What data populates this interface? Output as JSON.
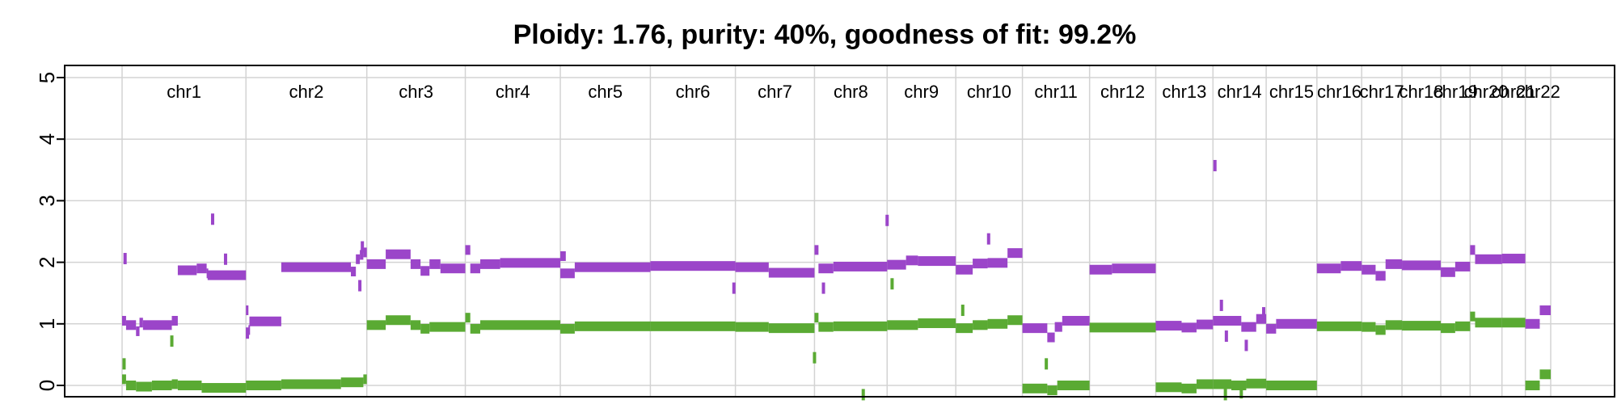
{
  "chart_data": {
    "type": "scatter",
    "title": "Ploidy: 1.76, purity: 40%, goodness of fit: 99.2%",
    "xlabel": "",
    "ylabel": "",
    "ylim": [
      -0.2,
      5.2
    ],
    "yticks": [
      "0",
      "1",
      "2",
      "3",
      "4",
      "5"
    ],
    "grid": true,
    "legend": "none",
    "colors": {
      "total": "#9b45c9",
      "minor": "#5aaa33"
    },
    "chromosomes": [
      {
        "name": "chr1",
        "start": 0,
        "end": 249
      },
      {
        "name": "chr2",
        "start": 249,
        "end": 492
      },
      {
        "name": "chr3",
        "start": 492,
        "end": 690
      },
      {
        "name": "chr4",
        "start": 690,
        "end": 881
      },
      {
        "name": "chr5",
        "start": 881,
        "end": 1062
      },
      {
        "name": "chr6",
        "start": 1062,
        "end": 1233
      },
      {
        "name": "chr7",
        "start": 1233,
        "end": 1392
      },
      {
        "name": "chr8",
        "start": 1392,
        "end": 1538
      },
      {
        "name": "chr9",
        "start": 1538,
        "end": 1676
      },
      {
        "name": "chr10",
        "start": 1676,
        "end": 1810
      },
      {
        "name": "chr11",
        "start": 1810,
        "end": 1945
      },
      {
        "name": "chr12",
        "start": 1945,
        "end": 2078
      },
      {
        "name": "chr13",
        "start": 2078,
        "end": 2193
      },
      {
        "name": "chr14",
        "start": 2193,
        "end": 2300
      },
      {
        "name": "chr15",
        "start": 2300,
        "end": 2402
      },
      {
        "name": "chr16",
        "start": 2402,
        "end": 2492
      },
      {
        "name": "chr17",
        "start": 2492,
        "end": 2573
      },
      {
        "name": "chr18",
        "start": 2573,
        "end": 2651
      },
      {
        "name": "chr19",
        "start": 2651,
        "end": 2710
      },
      {
        "name": "chr20",
        "start": 2710,
        "end": 2774
      },
      {
        "name": "chr21",
        "start": 2774,
        "end": 2821
      },
      {
        "name": "chr22",
        "start": 2821,
        "end": 2872
      }
    ],
    "series": [
      {
        "key": "total",
        "segments": [
          [
            0,
            8,
            1.05
          ],
          [
            8,
            28,
            0.98
          ],
          [
            28,
            35,
            0.88
          ],
          [
            35,
            42,
            1.02
          ],
          [
            42,
            100,
            0.98
          ],
          [
            100,
            112,
            1.05
          ],
          [
            112,
            150,
            1.87
          ],
          [
            150,
            170,
            1.9
          ],
          [
            170,
            172,
            1.82
          ],
          [
            172,
            249,
            1.79
          ],
          [
            249,
            254,
            1.22
          ],
          [
            254,
            256,
            0.9
          ],
          [
            256,
            320,
            1.04
          ],
          [
            320,
            460,
            1.92
          ],
          [
            460,
            470,
            1.85
          ],
          [
            470,
            478,
            2.05
          ],
          [
            478,
            485,
            2.12
          ],
          [
            485,
            492,
            2.16
          ],
          [
            492,
            530,
            1.97
          ],
          [
            530,
            580,
            2.13
          ],
          [
            580,
            600,
            1.97
          ],
          [
            600,
            618,
            1.86
          ],
          [
            618,
            640,
            1.97
          ],
          [
            640,
            690,
            1.9
          ],
          [
            690,
            700,
            2.2
          ],
          [
            700,
            720,
            1.9
          ],
          [
            720,
            760,
            1.97
          ],
          [
            760,
            881,
            1.99
          ],
          [
            881,
            892,
            2.1
          ],
          [
            881,
            910,
            1.82
          ],
          [
            910,
            1062,
            1.92
          ],
          [
            1062,
            1233,
            1.94
          ],
          [
            1233,
            1300,
            1.92
          ],
          [
            1300,
            1392,
            1.83
          ],
          [
            1392,
            1400,
            2.2
          ],
          [
            1400,
            1430,
            1.9
          ],
          [
            1430,
            1538,
            1.93
          ],
          [
            1538,
            1576,
            1.96
          ],
          [
            1576,
            1600,
            2.03
          ],
          [
            1600,
            1676,
            2.02
          ],
          [
            1676,
            1710,
            1.88
          ],
          [
            1710,
            1740,
            1.98
          ],
          [
            1740,
            1780,
            1.99
          ],
          [
            1780,
            1810,
            2.15
          ],
          [
            1810,
            1860,
            0.93
          ],
          [
            1860,
            1875,
            0.78
          ],
          [
            1875,
            1890,
            0.95
          ],
          [
            1890,
            1945,
            1.05
          ],
          [
            1945,
            1990,
            1.88
          ],
          [
            1990,
            2078,
            1.9
          ],
          [
            2078,
            2130,
            0.97
          ],
          [
            2130,
            2160,
            0.94
          ],
          [
            2160,
            2193,
            0.99
          ],
          [
            2193,
            2250,
            1.05
          ],
          [
            2250,
            2280,
            0.95
          ],
          [
            2280,
            2300,
            1.08
          ],
          [
            2300,
            2320,
            0.92
          ],
          [
            2320,
            2402,
            1.0
          ],
          [
            2402,
            2450,
            1.9
          ],
          [
            2450,
            2492,
            1.94
          ],
          [
            2492,
            2520,
            1.88
          ],
          [
            2520,
            2540,
            1.78
          ],
          [
            2540,
            2573,
            1.97
          ],
          [
            2573,
            2651,
            1.95
          ],
          [
            2651,
            2680,
            1.84
          ],
          [
            2680,
            2710,
            1.93
          ],
          [
            2710,
            2720,
            2.2
          ],
          [
            2720,
            2774,
            2.05
          ],
          [
            2774,
            2821,
            2.06
          ],
          [
            2821,
            2850,
            1.0
          ],
          [
            2850,
            2872,
            1.22
          ]
        ],
        "outliers": [
          [
            6,
            2.06
          ],
          [
            182,
            2.7
          ],
          [
            208,
            2.05
          ],
          [
            252,
            0.85
          ],
          [
            478,
            1.62
          ],
          [
            483,
            2.25
          ],
          [
            1230,
            1.58
          ],
          [
            1410,
            1.58
          ],
          [
            1538,
            2.68
          ],
          [
            1742,
            2.38
          ],
          [
            2197,
            3.57
          ],
          [
            2210,
            1.3
          ],
          [
            2220,
            0.8
          ],
          [
            2260,
            0.65
          ],
          [
            2295,
            1.18
          ]
        ]
      },
      {
        "key": "minor",
        "segments": [
          [
            0,
            8,
            0.1
          ],
          [
            8,
            28,
            0.0
          ],
          [
            28,
            60,
            -0.02
          ],
          [
            60,
            100,
            0.0
          ],
          [
            100,
            112,
            0.02
          ],
          [
            112,
            160,
            0.0
          ],
          [
            160,
            249,
            -0.04
          ],
          [
            249,
            320,
            0.0
          ],
          [
            320,
            440,
            0.02
          ],
          [
            440,
            485,
            0.05
          ],
          [
            485,
            492,
            0.1
          ],
          [
            492,
            530,
            0.98
          ],
          [
            530,
            580,
            1.06
          ],
          [
            580,
            600,
            0.98
          ],
          [
            600,
            618,
            0.92
          ],
          [
            618,
            690,
            0.95
          ],
          [
            690,
            700,
            1.1
          ],
          [
            700,
            720,
            0.92
          ],
          [
            720,
            881,
            0.98
          ],
          [
            881,
            910,
            0.92
          ],
          [
            910,
            1062,
            0.96
          ],
          [
            1062,
            1233,
            0.96
          ],
          [
            1233,
            1300,
            0.95
          ],
          [
            1300,
            1392,
            0.93
          ],
          [
            1392,
            1400,
            1.1
          ],
          [
            1400,
            1430,
            0.95
          ],
          [
            1430,
            1538,
            0.96
          ],
          [
            1538,
            1600,
            0.98
          ],
          [
            1600,
            1676,
            1.01
          ],
          [
            1676,
            1710,
            0.93
          ],
          [
            1710,
            1740,
            0.98
          ],
          [
            1740,
            1780,
            1.0
          ],
          [
            1780,
            1810,
            1.06
          ],
          [
            1810,
            1860,
            -0.05
          ],
          [
            1860,
            1880,
            -0.08
          ],
          [
            1880,
            1945,
            0.0
          ],
          [
            1945,
            2078,
            0.94
          ],
          [
            2078,
            2130,
            -0.03
          ],
          [
            2130,
            2160,
            -0.05
          ],
          [
            2160,
            2193,
            0.02
          ],
          [
            2193,
            2230,
            0.02
          ],
          [
            2230,
            2260,
            0.0
          ],
          [
            2260,
            2300,
            0.03
          ],
          [
            2300,
            2402,
            0.0
          ],
          [
            2402,
            2492,
            0.96
          ],
          [
            2492,
            2520,
            0.95
          ],
          [
            2520,
            2540,
            0.9
          ],
          [
            2540,
            2573,
            0.98
          ],
          [
            2573,
            2651,
            0.97
          ],
          [
            2651,
            2680,
            0.93
          ],
          [
            2680,
            2710,
            0.96
          ],
          [
            2710,
            2720,
            1.12
          ],
          [
            2720,
            2774,
            1.02
          ],
          [
            2774,
            2821,
            1.02
          ],
          [
            2821,
            2850,
            0.0
          ],
          [
            2850,
            2872,
            0.18
          ]
        ],
        "outliers": [
          [
            4,
            0.35
          ],
          [
            100,
            0.72
          ],
          [
            1392,
            0.45
          ],
          [
            1490,
            -0.15
          ],
          [
            1548,
            1.65
          ],
          [
            1690,
            1.22
          ],
          [
            1858,
            0.35
          ],
          [
            2218,
            -0.15
          ],
          [
            2250,
            -0.12
          ]
        ]
      }
    ]
  }
}
